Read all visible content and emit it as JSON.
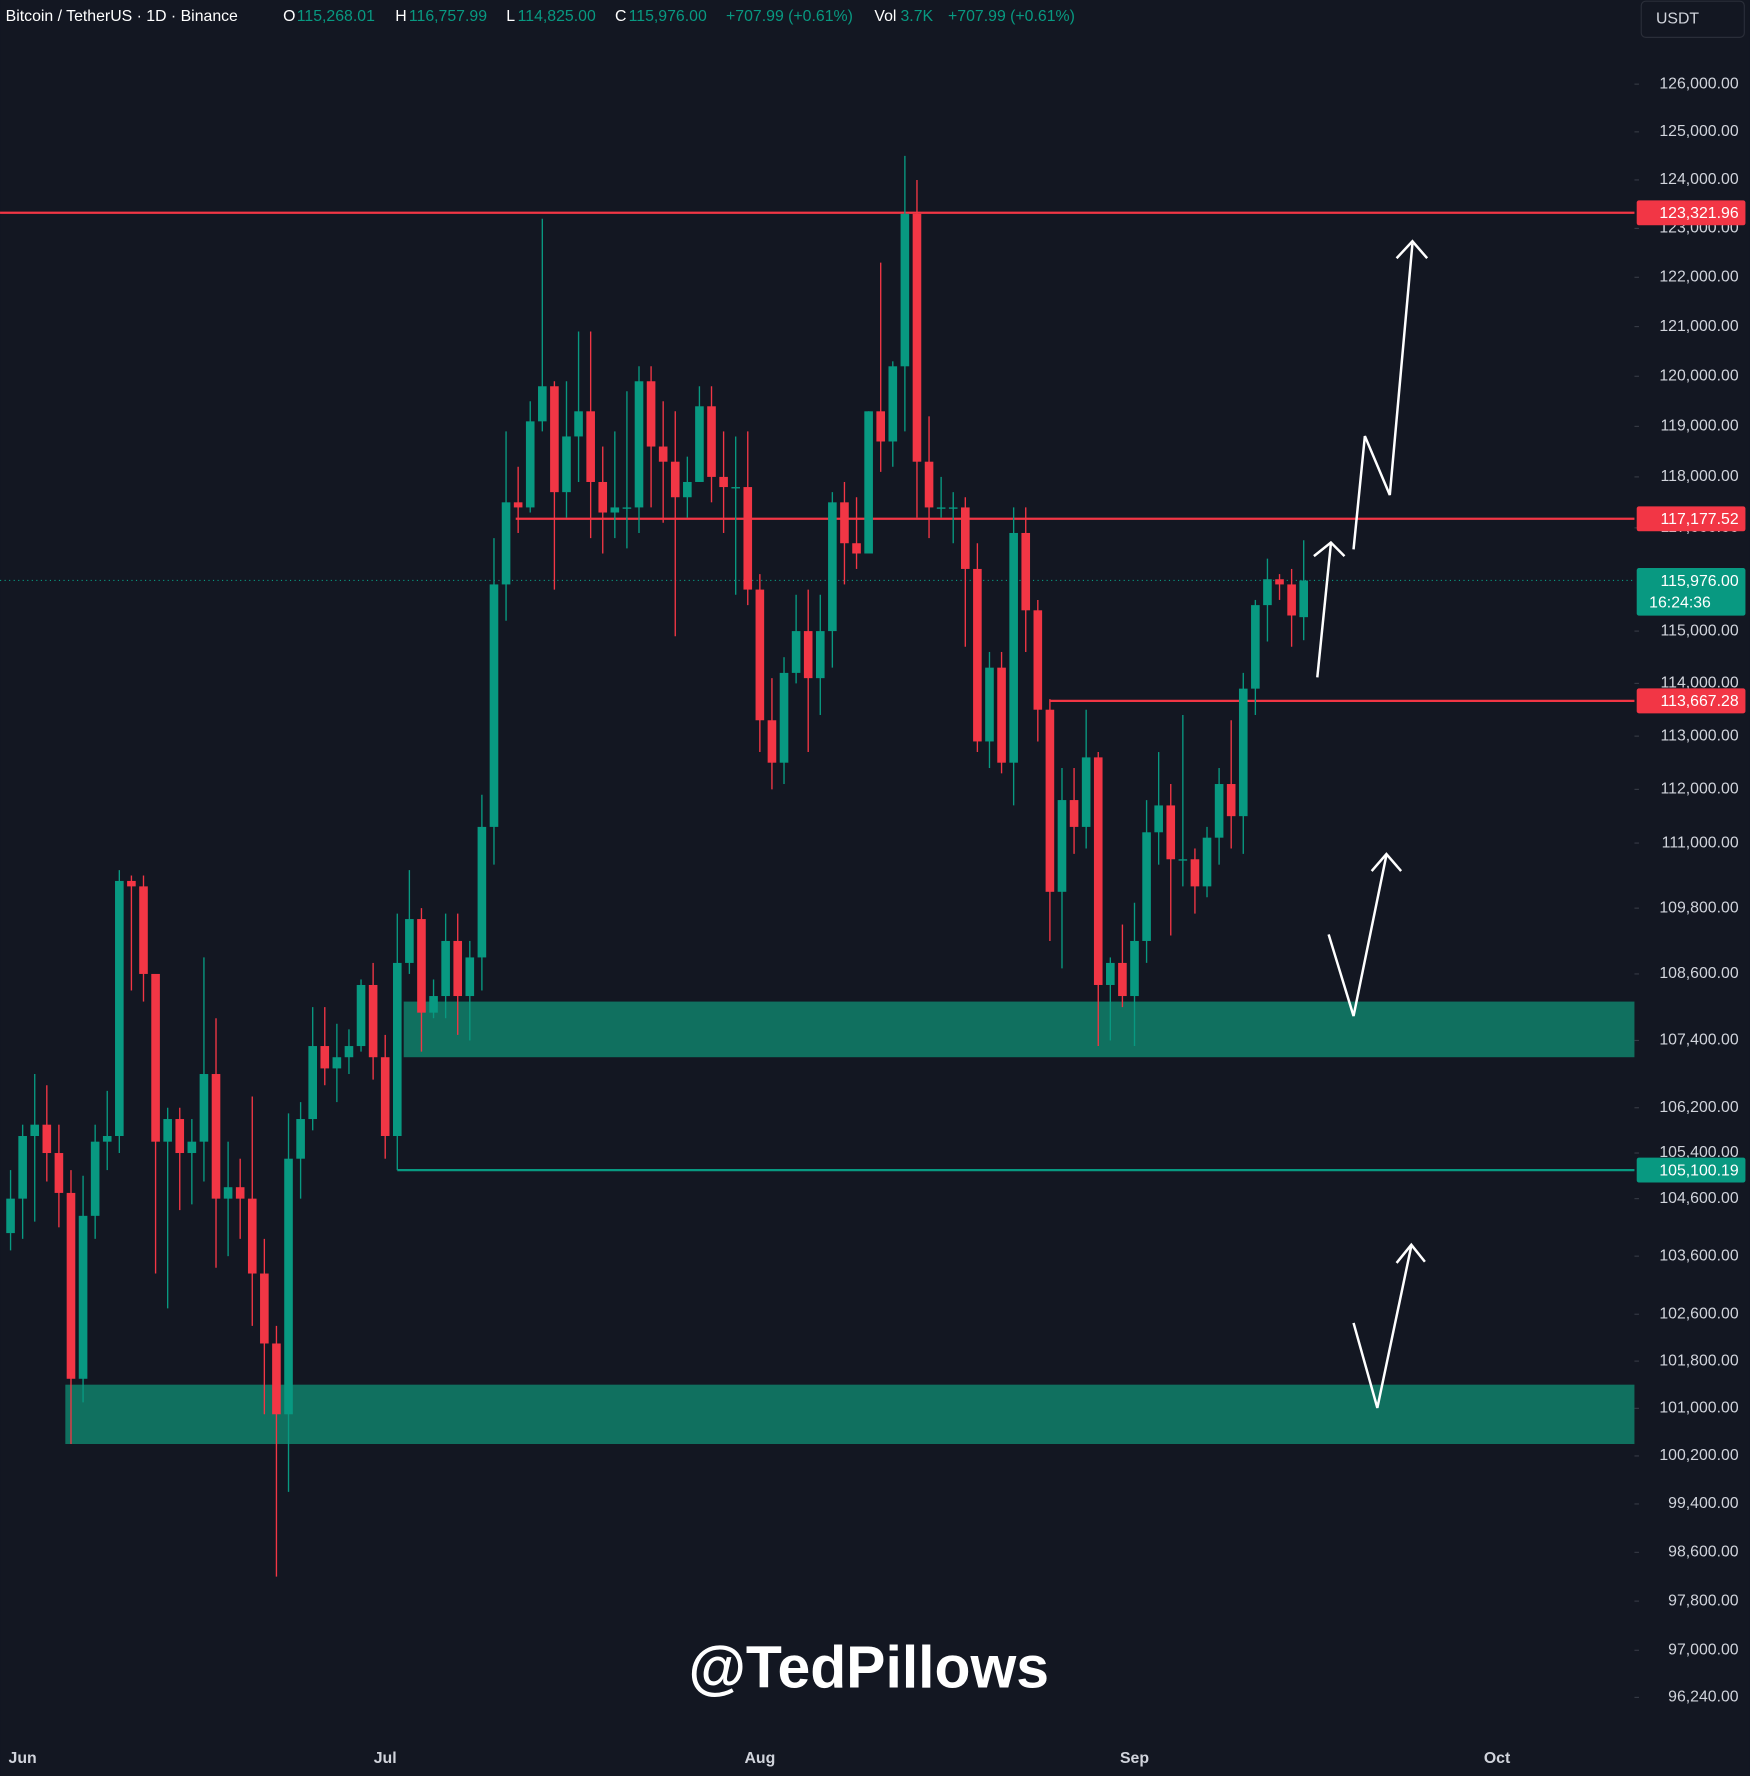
{
  "chart_data": {
    "type": "candlestick",
    "header": {
      "symbol": "Bitcoin / TetherUS · 1D · Binance",
      "ohlc": [
        {
          "key": "O",
          "value": "115,268.01"
        },
        {
          "key": "H",
          "value": "116,757.99"
        },
        {
          "key": "L",
          "value": "114,825.00"
        },
        {
          "key": "C",
          "value": "115,976.00"
        }
      ],
      "change": "+707.99 (+0.61%)",
      "volume_key": "Vol",
      "volume": "3.7K",
      "volume_change": "+707.99 (+0.61%)"
    },
    "currency": "USDT",
    "watermark": "@TedPillows",
    "up_color": "#089981",
    "down_color": "#f23645",
    "log_scale": true,
    "grid": false,
    "ylim": [
      95670,
      127060
    ],
    "yticks": [
      {
        "value": 126000,
        "label": "126,000.00"
      },
      {
        "value": 125000,
        "label": "125,000.00"
      },
      {
        "value": 124000,
        "label": "124,000.00"
      },
      {
        "value": 123000,
        "label": "123,000.00"
      },
      {
        "value": 122000,
        "label": "122,000.00"
      },
      {
        "value": 121000,
        "label": "121,000.00"
      },
      {
        "value": 120000,
        "label": "120,000.00"
      },
      {
        "value": 119000,
        "label": "119,000.00"
      },
      {
        "value": 118000,
        "label": "118,000.00"
      },
      {
        "value": 117000,
        "label": "117,000.00"
      },
      {
        "value": 115000,
        "label": "115,000.00"
      },
      {
        "value": 114000,
        "label": "114,000.00"
      },
      {
        "value": 113000,
        "label": "113,000.00"
      },
      {
        "value": 112000,
        "label": "112,000.00"
      },
      {
        "value": 111000,
        "label": "111,000.00"
      },
      {
        "value": 109800,
        "label": "109,800.00"
      },
      {
        "value": 108600,
        "label": "108,600.00"
      },
      {
        "value": 107400,
        "label": "107,400.00"
      },
      {
        "value": 106200,
        "label": "106,200.00"
      },
      {
        "value": 105400,
        "label": "105,400.00"
      },
      {
        "value": 104600,
        "label": "104,600.00"
      },
      {
        "value": 103600,
        "label": "103,600.00"
      },
      {
        "value": 102600,
        "label": "102,600.00"
      },
      {
        "value": 101800,
        "label": "101,800.00"
      },
      {
        "value": 101000,
        "label": "101,000.00"
      },
      {
        "value": 100200,
        "label": "100,200.00"
      },
      {
        "value": 99400,
        "label": "99,400.00"
      },
      {
        "value": 98600,
        "label": "98,600.00"
      },
      {
        "value": 97800,
        "label": "97,800.00"
      },
      {
        "value": 97000,
        "label": "97,000.00"
      },
      {
        "value": 96240,
        "label": "96,240.00"
      }
    ],
    "levels": [
      {
        "value": 123321.96,
        "label": "123,321.96",
        "color": "#f23645"
      },
      {
        "value": 117177.52,
        "label": "117,177.52",
        "color": "#f23645"
      },
      {
        "value": 113667.28,
        "label": "113,667.28",
        "color": "#f23645"
      },
      {
        "value": 105100.19,
        "label": "105,100.19",
        "color": "#089981"
      }
    ],
    "current_price": {
      "value": 115976,
      "label": "115,976.00",
      "countdown": "16:24:36",
      "color": "#089981"
    },
    "zones": [
      {
        "from": 107100,
        "to": 108100,
        "color": "#10705f"
      },
      {
        "from": 100400,
        "to": 101400,
        "color": "#10705f"
      }
    ],
    "categories": [
      null,
      "Jun",
      null,
      null,
      null,
      null,
      null,
      null,
      null,
      null,
      null,
      null,
      null,
      null,
      null,
      null,
      null,
      null,
      null,
      null,
      null,
      null,
      null,
      null,
      null,
      null,
      null,
      null,
      null,
      null,
      null,
      "Jul",
      null,
      null,
      null,
      null,
      null,
      null,
      null,
      null,
      null,
      null,
      null,
      null,
      null,
      null,
      null,
      null,
      null,
      null,
      null,
      null,
      null,
      null,
      null,
      null,
      null,
      null,
      null,
      null,
      null,
      null,
      "Aug",
      null,
      null,
      null,
      null,
      null,
      null,
      null,
      null,
      null,
      null,
      null,
      null,
      null,
      null,
      null,
      null,
      null,
      null,
      null,
      null,
      null,
      null,
      null,
      null,
      null,
      null,
      null,
      null,
      null,
      null,
      "Sep",
      null,
      null,
      null,
      null,
      null,
      null,
      null,
      null,
      null,
      null,
      null,
      null,
      null,
      null,
      null,
      null,
      null,
      null,
      null,
      null,
      null,
      null,
      null,
      null,
      null,
      null,
      null,
      null,
      null,
      "Oct",
      null,
      null,
      null,
      null,
      null,
      null,
      null,
      null,
      null,
      null,
      null
    ],
    "open": [
      104000,
      104600,
      105700,
      105900,
      105400,
      104700,
      101500,
      104300,
      105600,
      105700,
      110300,
      110200,
      108600,
      105600,
      106000,
      105400,
      105600,
      106800,
      104600,
      104800,
      104600,
      103300,
      102100,
      100900,
      105300,
      106000,
      107300,
      106900,
      107100,
      107300,
      108400,
      107100,
      105700,
      108800,
      109600,
      107900,
      108200,
      109200,
      108200,
      108900,
      111300,
      115900,
      117500,
      117400,
      119100,
      119800,
      117700,
      118800,
      119300,
      117900,
      117300,
      117400,
      117400,
      119900,
      118600,
      118300,
      117600,
      117900,
      119400,
      118000,
      117800,
      117800,
      115800,
      113300,
      112500,
      114200,
      115000,
      114100,
      115000,
      117500,
      116700,
      116500,
      119300,
      118700,
      120200,
      123300,
      118300,
      117400,
      117400,
      117400,
      116200,
      112900,
      114300,
      112500,
      116900,
      115400,
      113500,
      110100,
      111800,
      111300,
      112600,
      108400,
      108800,
      108200,
      109200,
      111200,
      111700,
      110700,
      110700,
      110200,
      111100,
      112100,
      111500,
      113900,
      115500,
      116000,
      115900,
      115268.01,
      null,
      null,
      null,
      null,
      null,
      null,
      null,
      null,
      null,
      null,
      null,
      null,
      null,
      null,
      null,
      null,
      null,
      null,
      null,
      null,
      null,
      null,
      null,
      null,
      null,
      null,
      null
    ],
    "high": [
      105100,
      105900,
      106800,
      106600,
      105900,
      105100,
      105000,
      105900,
      106500,
      110500,
      110400,
      110400,
      108600,
      106200,
      106200,
      106000,
      108900,
      107800,
      105600,
      105300,
      106400,
      103900,
      102400,
      106100,
      106300,
      108000,
      108000,
      107700,
      107600,
      108500,
      108800,
      107500,
      109700,
      110500,
      109800,
      108500,
      109700,
      109700,
      109200,
      111900,
      116800,
      118900,
      118200,
      119500,
      123200,
      119900,
      119900,
      120900,
      120900,
      118600,
      118900,
      119700,
      120200,
      120200,
      119500,
      119300,
      118400,
      119800,
      119800,
      118900,
      118800,
      118900,
      116100,
      114100,
      114500,
      115700,
      115800,
      115700,
      117700,
      117900,
      117600,
      119300,
      122300,
      120300,
      124500,
      124000,
      119200,
      118000,
      117700,
      117600,
      116700,
      114600,
      114600,
      117400,
      117400,
      115600,
      113700,
      112400,
      112400,
      113500,
      112700,
      108900,
      109500,
      109900,
      111800,
      112700,
      112100,
      113400,
      110900,
      111300,
      112400,
      113300,
      114200,
      115600,
      116400,
      116100,
      116200,
      116757.99,
      null,
      null,
      null,
      null,
      null,
      null,
      null,
      null,
      null,
      null,
      null,
      null,
      null,
      null,
      null,
      null,
      null,
      null,
      null,
      null,
      null,
      null,
      null,
      null,
      null,
      null,
      null
    ],
    "low": [
      103700,
      103900,
      104200,
      104900,
      104100,
      100400,
      101100,
      103900,
      105100,
      105400,
      108300,
      108100,
      103300,
      102700,
      104400,
      104500,
      104900,
      103400,
      103600,
      103900,
      102400,
      100900,
      98200,
      99600,
      104600,
      105800,
      106600,
      106300,
      106800,
      107200,
      106700,
      105300,
      105100,
      108600,
      107200,
      107800,
      107800,
      107500,
      107400,
      108300,
      110600,
      115200,
      116900,
      117300,
      118900,
      115800,
      117200,
      117900,
      116800,
      116500,
      116800,
      116600,
      116900,
      117400,
      117100,
      114900,
      117200,
      117900,
      117500,
      116900,
      115700,
      115500,
      112700,
      112000,
      112100,
      114000,
      112700,
      113400,
      114300,
      115900,
      116200,
      116500,
      118100,
      118200,
      118900,
      117200,
      116800,
      117200,
      116700,
      114700,
      112700,
      112400,
      112300,
      111700,
      114600,
      112900,
      109200,
      108700,
      110800,
      110900,
      107300,
      107400,
      108000,
      107300,
      108800,
      110600,
      109300,
      110200,
      109700,
      110000,
      110600,
      110900,
      110800,
      113400,
      114800,
      115600,
      114700,
      114825,
      null,
      null,
      null,
      null,
      null,
      null,
      null,
      null,
      null,
      null,
      null,
      null,
      null,
      null,
      null,
      null,
      null,
      null,
      null,
      null,
      null,
      null,
      null,
      null,
      null,
      null,
      null
    ],
    "close": [
      104600,
      105700,
      105900,
      105400,
      104700,
      101500,
      104300,
      105600,
      105700,
      110300,
      110200,
      108600,
      105600,
      106000,
      105400,
      105600,
      106800,
      104600,
      104800,
      104600,
      103300,
      102100,
      100900,
      105300,
      106000,
      107300,
      106900,
      107100,
      107300,
      108400,
      107100,
      105700,
      108800,
      109600,
      107900,
      108200,
      109200,
      108200,
      108900,
      111300,
      115900,
      117500,
      117400,
      119100,
      119800,
      117700,
      118800,
      119300,
      117900,
      117300,
      117400,
      117400,
      119900,
      118600,
      118300,
      117600,
      117900,
      119400,
      118000,
      117800,
      117800,
      115800,
      113300,
      112500,
      114200,
      115000,
      114100,
      115000,
      117500,
      116700,
      116500,
      119300,
      118700,
      120200,
      123300,
      118300,
      117400,
      117400,
      117400,
      116200,
      112900,
      114300,
      112500,
      116900,
      115400,
      113500,
      110100,
      111800,
      111300,
      112600,
      108400,
      108800,
      108200,
      109200,
      111200,
      111700,
      110700,
      110700,
      110200,
      111100,
      112100,
      111500,
      113900,
      115500,
      116000,
      115900,
      115300,
      115976,
      null,
      null,
      null,
      null,
      null,
      null,
      null,
      null,
      null,
      null,
      null,
      null,
      null,
      null,
      null,
      null,
      null,
      null,
      null,
      null,
      null,
      null,
      null,
      null,
      null,
      null,
      null
    ]
  }
}
